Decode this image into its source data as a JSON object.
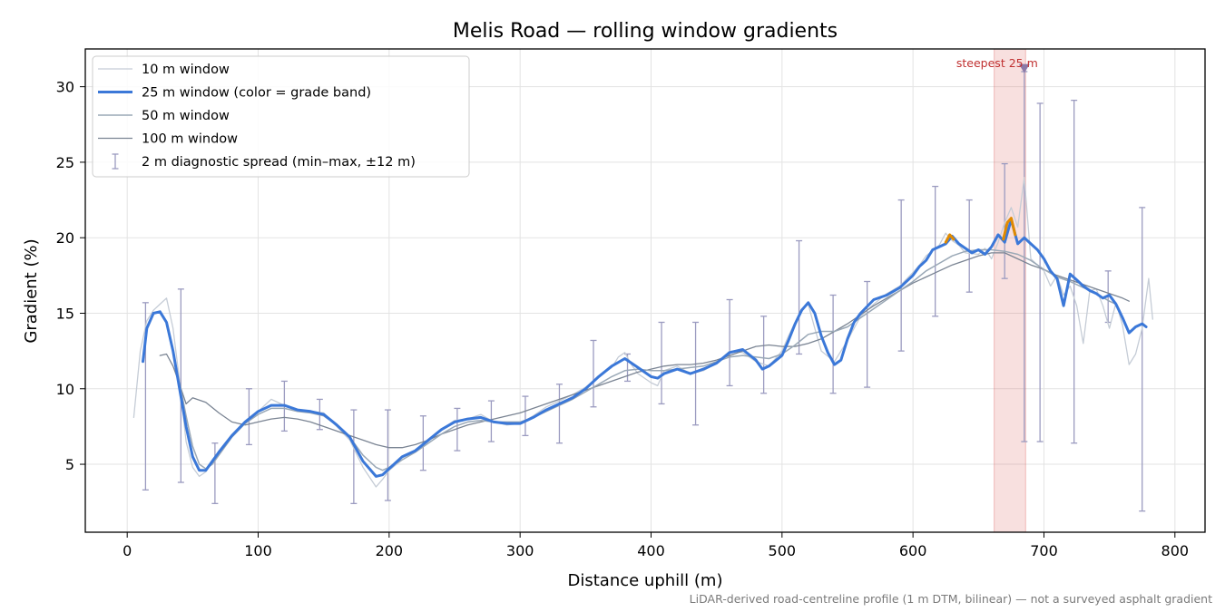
{
  "chart_data": {
    "type": "line",
    "title": "Melis Road — rolling window gradients",
    "xlabel": "Distance uphill (m)",
    "ylabel": "Gradient (%)",
    "xlim": [
      -32,
      823
    ],
    "ylim": [
      0.5,
      32.5
    ],
    "xticks": [
      0,
      100,
      200,
      300,
      400,
      500,
      600,
      700,
      800
    ],
    "yticks": [
      5,
      10,
      15,
      20,
      25,
      30
    ],
    "grid": true,
    "legend_position": "upper-left",
    "footnote": "LiDAR-derived road-centreline profile (1 m DTM, bilinear) — not a surveyed asphalt gradient",
    "highlight": {
      "x_start": 662,
      "x_end": 686,
      "label": "steepest 25 m",
      "marker_x": 685,
      "marker_y": 31.2,
      "color": "#d9534f"
    },
    "series": [
      {
        "name": "10 m window",
        "color": "#c5ccd6",
        "width": 1.3,
        "x": [
          5,
          10,
          15,
          20,
          25,
          30,
          35,
          40,
          45,
          50,
          55,
          60,
          65,
          70,
          80,
          90,
          100,
          110,
          120,
          130,
          140,
          150,
          160,
          170,
          180,
          190,
          195,
          200,
          210,
          220,
          230,
          240,
          250,
          260,
          270,
          280,
          290,
          300,
          310,
          320,
          330,
          340,
          350,
          360,
          370,
          375,
          380,
          385,
          390,
          395,
          400,
          405,
          410,
          420,
          430,
          440,
          450,
          460,
          470,
          480,
          490,
          500,
          505,
          510,
          515,
          520,
          525,
          530,
          540,
          550,
          560,
          570,
          580,
          590,
          600,
          605,
          610,
          620,
          625,
          630,
          635,
          640,
          650,
          655,
          660,
          665,
          670,
          675,
          680,
          685,
          690,
          695,
          700,
          705,
          710,
          715,
          720,
          725,
          730,
          735,
          740,
          745,
          750,
          755,
          760,
          765,
          770,
          775,
          780,
          783
        ],
        "y": [
          8.1,
          12.5,
          14.5,
          15.2,
          15.6,
          16.0,
          14.0,
          10.5,
          6.5,
          4.8,
          4.2,
          4.5,
          5.3,
          5.8,
          6.9,
          7.8,
          8.5,
          9.3,
          8.9,
          8.6,
          8.5,
          8.4,
          7.5,
          6.6,
          4.8,
          3.5,
          4.0,
          4.6,
          5.3,
          5.8,
          6.6,
          7.3,
          7.9,
          8.0,
          8.3,
          7.8,
          7.6,
          7.7,
          8.2,
          8.8,
          9.2,
          9.6,
          10.1,
          10.8,
          11.4,
          12.1,
          12.4,
          11.6,
          11.0,
          10.7,
          10.4,
          10.2,
          11.2,
          11.5,
          11.0,
          11.2,
          11.7,
          12.5,
          12.4,
          11.8,
          11.5,
          12.5,
          13.5,
          14.4,
          15.3,
          15.6,
          14.0,
          12.5,
          11.8,
          13.2,
          14.8,
          15.6,
          16.3,
          16.8,
          17.7,
          18.2,
          18.8,
          19.5,
          20.3,
          19.8,
          19.5,
          19.0,
          18.9,
          19.3,
          18.6,
          19.7,
          21.0,
          22.0,
          20.7,
          24.0,
          18.6,
          18.2,
          17.8,
          16.8,
          17.5,
          16.2,
          16.8,
          15.5,
          13.0,
          16.5,
          16.6,
          15.5,
          14.0,
          15.7,
          14.2,
          11.6,
          12.3,
          14.0,
          17.3,
          14.6
        ]
      },
      {
        "name": "25 m window (color = grade band)",
        "color": "#3b78d8",
        "width": 3,
        "x": [
          12,
          15,
          20,
          25,
          30,
          35,
          40,
          45,
          50,
          55,
          60,
          65,
          70,
          80,
          90,
          100,
          110,
          120,
          130,
          140,
          150,
          160,
          170,
          180,
          190,
          195,
          200,
          210,
          220,
          230,
          240,
          250,
          260,
          270,
          280,
          290,
          300,
          310,
          320,
          330,
          340,
          350,
          360,
          370,
          380,
          390,
          400,
          405,
          410,
          420,
          430,
          440,
          450,
          460,
          470,
          480,
          485,
          490,
          500,
          505,
          510,
          515,
          520,
          525,
          530,
          535,
          540,
          545,
          550,
          555,
          560,
          570,
          580,
          590,
          600,
          605,
          610,
          615,
          620,
          625,
          630,
          635,
          640,
          645,
          650,
          655,
          660,
          665,
          670,
          675,
          680,
          685,
          690,
          695,
          700,
          705,
          710,
          715,
          720,
          725,
          730,
          735,
          740,
          745,
          750,
          755,
          760,
          765,
          770,
          775,
          778
        ],
        "y": [
          11.8,
          14.0,
          15.0,
          15.1,
          14.4,
          12.5,
          10.0,
          7.5,
          5.5,
          4.6,
          4.6,
          5.2,
          5.8,
          6.9,
          7.8,
          8.5,
          8.9,
          8.9,
          8.6,
          8.5,
          8.3,
          7.6,
          6.8,
          5.2,
          4.2,
          4.3,
          4.7,
          5.5,
          5.9,
          6.6,
          7.3,
          7.8,
          8.0,
          8.1,
          7.8,
          7.7,
          7.7,
          8.1,
          8.6,
          9.0,
          9.4,
          10.0,
          10.8,
          11.5,
          12.0,
          11.4,
          10.8,
          10.7,
          11.0,
          11.3,
          11.0,
          11.3,
          11.7,
          12.4,
          12.6,
          11.9,
          11.3,
          11.5,
          12.2,
          13.2,
          14.3,
          15.2,
          15.7,
          15.0,
          13.5,
          12.4,
          11.6,
          11.9,
          13.3,
          14.4,
          15.0,
          15.9,
          16.2,
          16.7,
          17.5,
          18.1,
          18.5,
          19.2,
          19.4,
          19.6,
          20.1,
          19.6,
          19.3,
          19.0,
          19.2,
          18.9,
          19.4,
          20.2,
          19.7,
          21.2,
          19.6,
          20.0,
          19.6,
          19.2,
          18.6,
          17.8,
          17.3,
          15.5,
          17.6,
          17.2,
          16.8,
          16.5,
          16.3,
          16.0,
          16.2,
          15.6,
          14.7,
          13.7,
          14.1,
          14.3,
          14.1
        ]
      },
      {
        "name": "50 m window",
        "color": "#9aa8b6",
        "width": 1.5,
        "x": [
          40,
          45,
          50,
          55,
          60,
          65,
          70,
          80,
          90,
          100,
          110,
          120,
          130,
          140,
          150,
          160,
          170,
          180,
          190,
          195,
          200,
          210,
          220,
          230,
          240,
          250,
          260,
          270,
          280,
          290,
          300,
          310,
          320,
          330,
          340,
          350,
          360,
          370,
          380,
          390,
          400,
          410,
          420,
          430,
          440,
          450,
          460,
          470,
          480,
          490,
          500,
          510,
          520,
          530,
          540,
          550,
          560,
          570,
          580,
          590,
          600,
          610,
          620,
          630,
          640,
          650,
          660,
          670,
          680,
          690,
          700,
          710,
          720,
          730,
          740,
          750,
          755
        ],
        "y": [
          10.4,
          8.2,
          6.2,
          5.0,
          4.7,
          5.0,
          5.6,
          6.8,
          7.7,
          8.3,
          8.7,
          8.7,
          8.5,
          8.4,
          8.2,
          7.6,
          6.8,
          5.6,
          4.8,
          4.6,
          4.8,
          5.3,
          5.8,
          6.4,
          7.0,
          7.5,
          7.8,
          7.9,
          7.8,
          7.8,
          7.8,
          8.1,
          8.5,
          8.9,
          9.3,
          9.8,
          10.3,
          10.8,
          11.2,
          11.3,
          11.2,
          11.2,
          11.3,
          11.4,
          11.5,
          11.8,
          12.1,
          12.2,
          12.1,
          12.0,
          12.3,
          12.9,
          13.6,
          13.8,
          13.8,
          14.1,
          14.7,
          15.3,
          15.9,
          16.5,
          17.1,
          17.8,
          18.3,
          18.8,
          19.1,
          19.2,
          19.2,
          19.1,
          18.9,
          18.5,
          17.9,
          17.4,
          17.1,
          16.7,
          16.3,
          15.8,
          15.6
        ]
      },
      {
        "name": "100 m window",
        "color": "#7a8493",
        "width": 1.3,
        "x": [
          25,
          30,
          35,
          40,
          45,
          50,
          60,
          70,
          80,
          90,
          100,
          110,
          120,
          130,
          140,
          150,
          160,
          170,
          180,
          190,
          200,
          210,
          220,
          230,
          240,
          250,
          260,
          270,
          280,
          290,
          300,
          310,
          320,
          330,
          340,
          350,
          360,
          370,
          380,
          390,
          400,
          410,
          420,
          430,
          440,
          450,
          460,
          470,
          480,
          490,
          500,
          510,
          520,
          530,
          540,
          550,
          560,
          570,
          580,
          590,
          600,
          610,
          620,
          630,
          640,
          650,
          660,
          670,
          680,
          690,
          700,
          710,
          720,
          730,
          740,
          750,
          760,
          765
        ],
        "y": [
          12.2,
          12.3,
          11.5,
          10.3,
          9.0,
          9.4,
          9.1,
          8.4,
          7.8,
          7.6,
          7.8,
          8.0,
          8.1,
          8.0,
          7.8,
          7.5,
          7.2,
          6.9,
          6.6,
          6.3,
          6.1,
          6.1,
          6.3,
          6.6,
          7.0,
          7.3,
          7.6,
          7.8,
          8.0,
          8.2,
          8.4,
          8.7,
          9.0,
          9.3,
          9.6,
          9.9,
          10.2,
          10.5,
          10.8,
          11.1,
          11.3,
          11.5,
          11.6,
          11.6,
          11.7,
          11.9,
          12.2,
          12.5,
          12.8,
          12.9,
          12.8,
          12.8,
          13.0,
          13.3,
          13.8,
          14.3,
          14.9,
          15.5,
          16.0,
          16.5,
          17.0,
          17.4,
          17.8,
          18.2,
          18.5,
          18.8,
          19.0,
          19.0,
          18.6,
          18.2,
          17.9,
          17.5,
          17.2,
          16.9,
          16.6,
          16.3,
          16.0,
          15.8
        ]
      }
    ],
    "orange_segments": [
      {
        "x": [
          625,
          628,
          631
        ],
        "y": [
          19.7,
          20.2,
          19.9
        ]
      },
      {
        "x": [
          669,
          672,
          675,
          678
        ],
        "y": [
          19.9,
          21.0,
          21.3,
          20.2
        ]
      }
    ],
    "orange_color": "#e08a00",
    "errorbars": {
      "name": "2 m diagnostic spread (min–max, ±12 m)",
      "color": "#9b9bc0",
      "x": [
        14,
        41,
        67,
        93,
        120,
        147,
        173,
        199,
        226,
        252,
        278,
        304,
        330,
        356,
        382,
        408,
        434,
        460,
        486,
        513,
        539,
        565,
        591,
        617,
        643,
        670,
        685,
        697,
        723,
        749,
        775
      ],
      "low": [
        3.3,
        3.8,
        2.4,
        6.3,
        7.2,
        7.3,
        2.4,
        2.6,
        4.6,
        5.9,
        6.5,
        6.9,
        6.4,
        8.8,
        10.5,
        9.0,
        7.6,
        10.2,
        9.7,
        12.3,
        9.7,
        10.1,
        12.5,
        14.8,
        16.4,
        17.3,
        6.5,
        6.5,
        6.4,
        14.4,
        1.9
      ],
      "high": [
        15.7,
        16.6,
        6.4,
        10.0,
        10.5,
        9.3,
        8.6,
        8.6,
        8.2,
        8.7,
        9.2,
        9.5,
        10.3,
        13.2,
        12.3,
        14.4,
        14.4,
        15.9,
        14.8,
        19.8,
        16.2,
        17.1,
        22.5,
        23.4,
        22.5,
        24.9,
        31.0,
        28.9,
        29.1,
        17.8,
        22.0
      ]
    }
  }
}
